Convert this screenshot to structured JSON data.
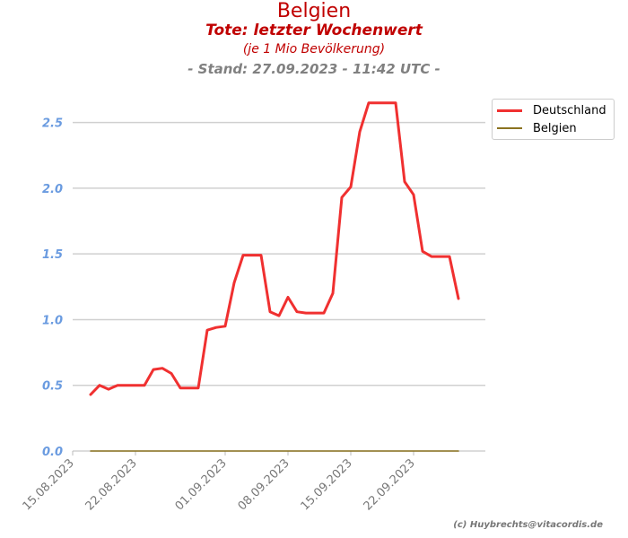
{
  "chart_data": {
    "type": "line",
    "title": "Belgien",
    "subtitle": "Tote: letzter Wochenwert",
    "subtitle2": "(je 1 Mio Bevölkerung)",
    "stand": "- Stand: 27.09.2023 - 11:42 UTC -",
    "ylim": [
      0,
      2.75
    ],
    "yticks": [
      0.0,
      0.5,
      1.0,
      1.5,
      2.0,
      2.5
    ],
    "ytick_labels": [
      "0.0",
      "0.5",
      "1.0",
      "1.5",
      "2.0",
      "2.5"
    ],
    "xlim": [
      "2023-08-15",
      "2023-09-30"
    ],
    "xticks": [
      "2023-08-15",
      "2023-08-22",
      "2023-09-01",
      "2023-09-08",
      "2023-09-15",
      "2023-09-22"
    ],
    "xtick_labels": [
      "15.08.2023",
      "22.08.2023",
      "01.09.2023",
      "08.09.2023",
      "15.09.2023",
      "22.09.2023"
    ],
    "grid": true,
    "legend_position": "top-right-outside",
    "series": [
      {
        "name": "Deutschland",
        "color": "#f03030",
        "x": [
          "2023-08-17",
          "2023-08-18",
          "2023-08-19",
          "2023-08-20",
          "2023-08-21",
          "2023-08-22",
          "2023-08-23",
          "2023-08-24",
          "2023-08-25",
          "2023-08-26",
          "2023-08-27",
          "2023-08-28",
          "2023-08-29",
          "2023-08-30",
          "2023-08-31",
          "2023-09-01",
          "2023-09-02",
          "2023-09-03",
          "2023-09-04",
          "2023-09-05",
          "2023-09-06",
          "2023-09-07",
          "2023-09-08",
          "2023-09-09",
          "2023-09-10",
          "2023-09-11",
          "2023-09-12",
          "2023-09-13",
          "2023-09-14",
          "2023-09-15",
          "2023-09-16",
          "2023-09-17",
          "2023-09-18",
          "2023-09-19",
          "2023-09-20",
          "2023-09-21",
          "2023-09-22",
          "2023-09-23",
          "2023-09-24",
          "2023-09-25",
          "2023-09-26",
          "2023-09-27"
        ],
        "values": [
          0.43,
          0.5,
          0.47,
          0.5,
          0.5,
          0.5,
          0.5,
          0.62,
          0.63,
          0.59,
          0.48,
          0.48,
          0.48,
          0.92,
          0.94,
          0.95,
          1.28,
          1.49,
          1.49,
          1.49,
          1.06,
          1.03,
          1.17,
          1.06,
          1.05,
          1.05,
          1.05,
          1.2,
          1.93,
          2.01,
          2.43,
          2.65,
          2.65,
          2.65,
          2.65,
          2.05,
          1.95,
          1.52,
          1.48,
          1.48,
          1.48,
          1.16
        ]
      },
      {
        "name": "Belgien",
        "color": "#8b7320",
        "x": [
          "2023-08-17",
          "2023-09-27"
        ],
        "values": [
          0,
          0
        ]
      }
    ]
  },
  "copyright": "(c) Huybrechts@vitacordis.de"
}
